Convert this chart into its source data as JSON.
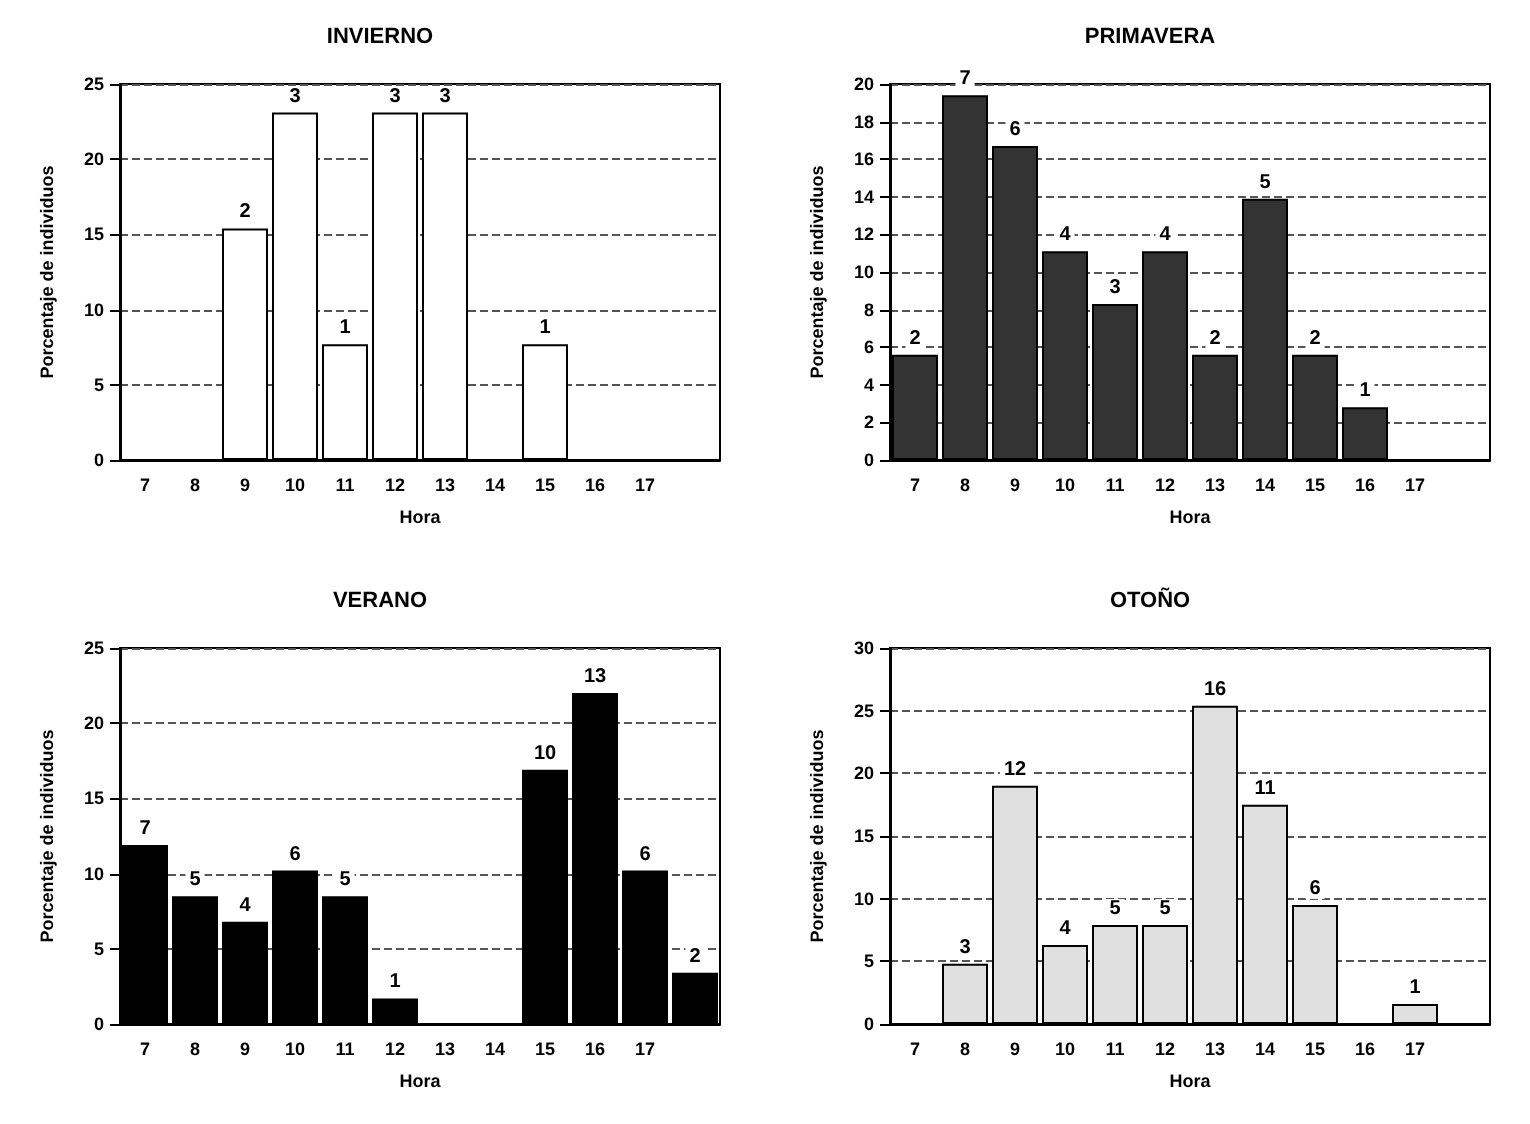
{
  "chart_data": [
    {
      "type": "bar",
      "title": "INVIERNO",
      "xlabel": "Hora",
      "ylabel": "Porcentaje de individuos",
      "categories": [
        "7",
        "8",
        "9",
        "10",
        "11",
        "12",
        "13",
        "14",
        "15",
        "16",
        "17",
        null
      ],
      "values": [
        0,
        0,
        15.4,
        23.1,
        7.7,
        23.1,
        23.1,
        0,
        7.7,
        0,
        0,
        0
      ],
      "color": "#ffffff",
      "ylim": [
        0,
        25
      ],
      "yticks": [
        0,
        5,
        10,
        15,
        20,
        25
      ],
      "grid": "y",
      "annotations": [
        {
          "text": "2",
          "x": "9",
          "y": 15.4
        },
        {
          "text": "3",
          "x": "10",
          "y": 23.1
        },
        {
          "text": "1",
          "x": "11",
          "y": 7.7
        },
        {
          "text": "3",
          "x": "12",
          "y": 23.1
        },
        {
          "text": "3",
          "x": "13",
          "y": 23.1
        },
        {
          "text": "1",
          "x": "15",
          "y": 7.7
        }
      ]
    },
    {
      "type": "bar",
      "title": "PRIMAVERA",
      "xlabel": "Hora",
      "ylabel": "Porcentaje de individuos",
      "categories": [
        "7",
        "8",
        "9",
        "10",
        "11",
        "12",
        "13",
        "14",
        "15",
        "16",
        "17",
        null
      ],
      "values": [
        5.6,
        19.4,
        16.7,
        11.1,
        8.3,
        11.1,
        5.6,
        13.9,
        5.6,
        2.8,
        0,
        0
      ],
      "color": "#333333",
      "ylim": [
        0,
        20
      ],
      "yticks": [
        0,
        2,
        4,
        6,
        8,
        10,
        12,
        14,
        16,
        18,
        20
      ],
      "grid": "y",
      "annotations": [
        {
          "text": "2",
          "x": "7",
          "y": 5.6
        },
        {
          "text": "7",
          "x": "8",
          "y": 19.4
        },
        {
          "text": "6",
          "x": "9",
          "y": 16.7
        },
        {
          "text": "4",
          "x": "10",
          "y": 11.1
        },
        {
          "text": "3",
          "x": "11",
          "y": 8.3
        },
        {
          "text": "4",
          "x": "12",
          "y": 11.1
        },
        {
          "text": "2",
          "x": "13",
          "y": 5.6
        },
        {
          "text": "5",
          "x": "14",
          "y": 13.9
        },
        {
          "text": "2",
          "x": "15",
          "y": 5.6
        },
        {
          "text": "1",
          "x": "16",
          "y": 2.8
        }
      ]
    },
    {
      "type": "bar",
      "title": "VERANO",
      "xlabel": "Hora",
      "ylabel": "Porcentaje de individuos",
      "categories": [
        "7",
        "8",
        "9",
        "10",
        "11",
        "12",
        "13",
        "14",
        "15",
        "16",
        "17",
        null
      ],
      "values": [
        11.9,
        8.5,
        6.8,
        10.2,
        8.5,
        1.7,
        0,
        0,
        16.9,
        22.0,
        10.2,
        3.4
      ],
      "color": "#000000",
      "ylim": [
        0,
        25
      ],
      "yticks": [
        0,
        5,
        10,
        15,
        20,
        25
      ],
      "grid": "y",
      "annotations": [
        {
          "text": "7",
          "x": "7",
          "y": 11.9
        },
        {
          "text": "5",
          "x": "8",
          "y": 8.5
        },
        {
          "text": "4",
          "x": "9",
          "y": 6.8
        },
        {
          "text": "6",
          "x": "10",
          "y": 10.2
        },
        {
          "text": "5",
          "x": "11",
          "y": 8.5
        },
        {
          "text": "1",
          "x": "12",
          "y": 1.7
        },
        {
          "text": "10",
          "x": "15",
          "y": 16.9
        },
        {
          "text": "13",
          "x": "16",
          "y": 22.0
        },
        {
          "text": "6",
          "x": "17",
          "y": 10.2
        },
        {
          "text": "2",
          "y": 3.4
        }
      ]
    },
    {
      "type": "bar",
      "title": "OTOÑO",
      "xlabel": "Hora",
      "ylabel": "Porcentaje de individuos",
      "categories": [
        "7",
        "8",
        "9",
        "10",
        "11",
        "12",
        "13",
        "14",
        "15",
        "16",
        "17",
        null
      ],
      "values": [
        0,
        4.8,
        19.0,
        6.3,
        7.9,
        7.9,
        25.4,
        17.5,
        9.5,
        0,
        1.6,
        0
      ],
      "color": "#e0e0e0",
      "ylim": [
        0,
        30
      ],
      "yticks": [
        0,
        5,
        10,
        15,
        20,
        25,
        30
      ],
      "grid": "y",
      "annotations": [
        {
          "text": "3",
          "x": "8",
          "y": 4.8
        },
        {
          "text": "12",
          "x": "9",
          "y": 19.0
        },
        {
          "text": "4",
          "x": "10",
          "y": 6.3
        },
        {
          "text": "5",
          "x": "11",
          "y": 7.9
        },
        {
          "text": "5",
          "x": "12",
          "y": 7.9
        },
        {
          "text": "16",
          "x": "13",
          "y": 25.4
        },
        {
          "text": "11",
          "x": "14",
          "y": 17.5
        },
        {
          "text": "6",
          "x": "15",
          "y": 9.5
        },
        {
          "text": "1",
          "x": "17",
          "y": 1.6
        }
      ]
    }
  ]
}
